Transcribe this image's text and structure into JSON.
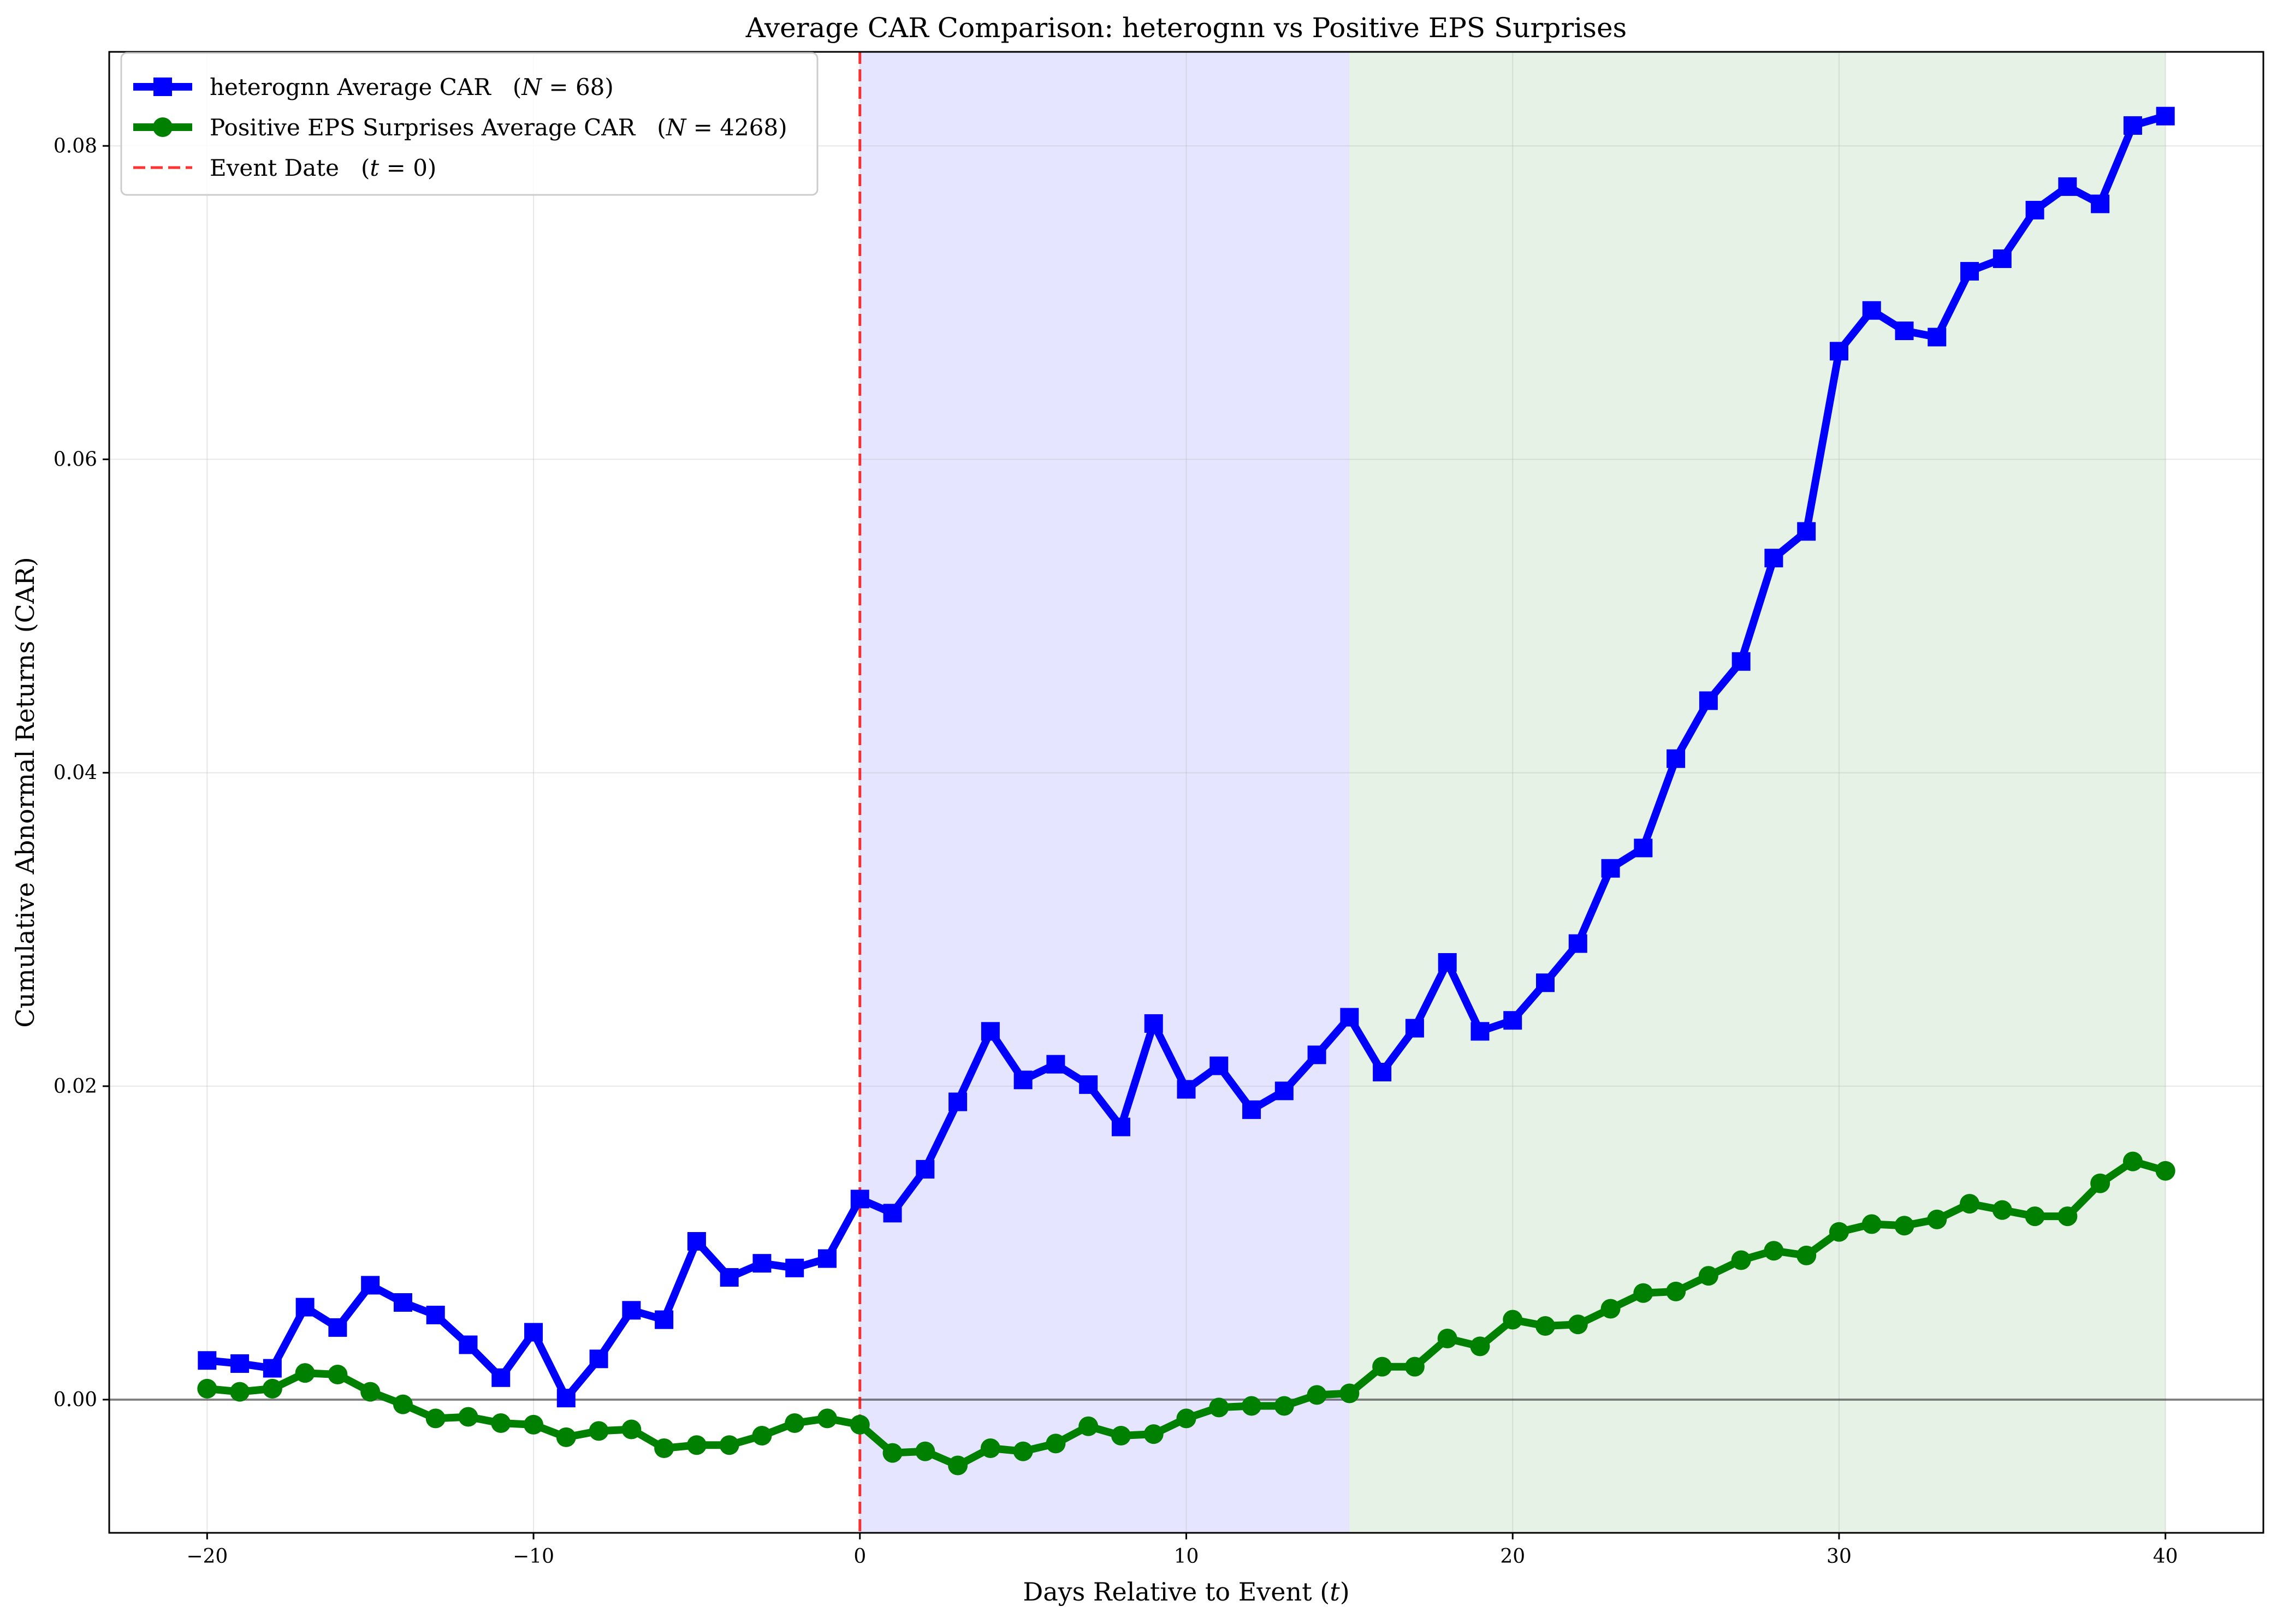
{
  "chart_data": {
    "type": "line",
    "title": "Average CAR Comparison: heterognn vs Positive EPS Surprises",
    "xlabel": "Days Relative to Event (t)",
    "ylabel": "Cumulative Abnormal Returns (CAR)",
    "xlim": [
      -23,
      43
    ],
    "ylim": [
      -0.0085,
      0.086
    ],
    "x_ticks": [
      -20,
      -10,
      0,
      10,
      20,
      30,
      40
    ],
    "x_tick_labels": [
      "−20",
      "−10",
      "0",
      "10",
      "20",
      "30",
      "40"
    ],
    "y_ticks": [
      0.0,
      0.02,
      0.04,
      0.06,
      0.08
    ],
    "y_tick_labels": [
      "0.00",
      "0.02",
      "0.04",
      "0.06",
      "0.08"
    ],
    "grid": true,
    "legend_position": "top-left",
    "x": [
      -20,
      -19,
      -18,
      -17,
      -16,
      -15,
      -14,
      -13,
      -12,
      -11,
      -10,
      -9,
      -8,
      -7,
      -6,
      -5,
      -4,
      -3,
      -2,
      -1,
      0,
      1,
      2,
      3,
      4,
      5,
      6,
      7,
      8,
      9,
      10,
      11,
      12,
      13,
      14,
      15,
      16,
      17,
      18,
      19,
      20,
      21,
      22,
      23,
      24,
      25,
      26,
      27,
      28,
      29,
      30,
      31,
      32,
      33,
      34,
      35,
      36,
      37,
      38,
      39,
      40
    ],
    "series": [
      {
        "name": "heterognn Average CAR (N = 68)",
        "color": "#0000ff",
        "marker": "square",
        "values": [
          0.0025,
          0.0023,
          0.002,
          0.0059,
          0.0046,
          0.0073,
          0.0062,
          0.0054,
          0.0035,
          0.0014,
          0.0043,
          0.0001,
          0.0026,
          0.0057,
          0.0051,
          0.0101,
          0.0078,
          0.0087,
          0.0084,
          0.009,
          0.0128,
          0.0119,
          0.0147,
          0.019,
          0.0235,
          0.0204,
          0.0214,
          0.0201,
          0.0174,
          0.024,
          0.0198,
          0.0213,
          0.0185,
          0.0197,
          0.022,
          0.0244,
          0.0209,
          0.0237,
          0.0279,
          0.0235,
          0.0242,
          0.0266,
          0.0291,
          0.0339,
          0.0352,
          0.0409,
          0.0446,
          0.0471,
          0.0537,
          0.0554,
          0.0669,
          0.0695,
          0.0682,
          0.0678,
          0.072,
          0.0728,
          0.0759,
          0.0774,
          0.0763,
          0.0813,
          0.0819
        ]
      },
      {
        "name": "Positive EPS Surprises Average CAR (N = 4268)",
        "color": "#008000",
        "marker": "circle",
        "values": [
          0.0007,
          0.0005,
          0.0007,
          0.0017,
          0.0016,
          0.0005,
          -0.0003,
          -0.0012,
          -0.0011,
          -0.0015,
          -0.0016,
          -0.0024,
          -0.002,
          -0.0019,
          -0.0031,
          -0.0029,
          -0.0029,
          -0.0023,
          -0.0015,
          -0.0012,
          -0.0016,
          -0.0034,
          -0.0033,
          -0.0042,
          -0.0031,
          -0.0033,
          -0.0028,
          -0.0017,
          -0.0023,
          -0.0022,
          -0.0012,
          -0.0005,
          -0.0004,
          -0.0004,
          0.0003,
          0.0004,
          0.0021,
          0.0021,
          0.0039,
          0.0034,
          0.0051,
          0.0047,
          0.0048,
          0.0058,
          0.0068,
          0.0069,
          0.0079,
          0.0089,
          0.0095,
          0.0092,
          0.0107,
          0.0112,
          0.0111,
          0.0115,
          0.0125,
          0.0121,
          0.0117,
          0.0117,
          0.0138,
          0.0152,
          0.0146
        ]
      }
    ],
    "event_line": {
      "x": 0,
      "name": "Event Date (t = 0)",
      "color": "#ff0000",
      "style": "dashed"
    },
    "shaded_regions": [
      {
        "x_start": 0,
        "x_end": 15,
        "color": "#0000ff",
        "alpha": 0.1
      },
      {
        "x_start": 15,
        "x_end": 40,
        "color": "#008000",
        "alpha": 0.1
      }
    ],
    "baseline": {
      "y": 0.0,
      "color": "#000000"
    }
  }
}
